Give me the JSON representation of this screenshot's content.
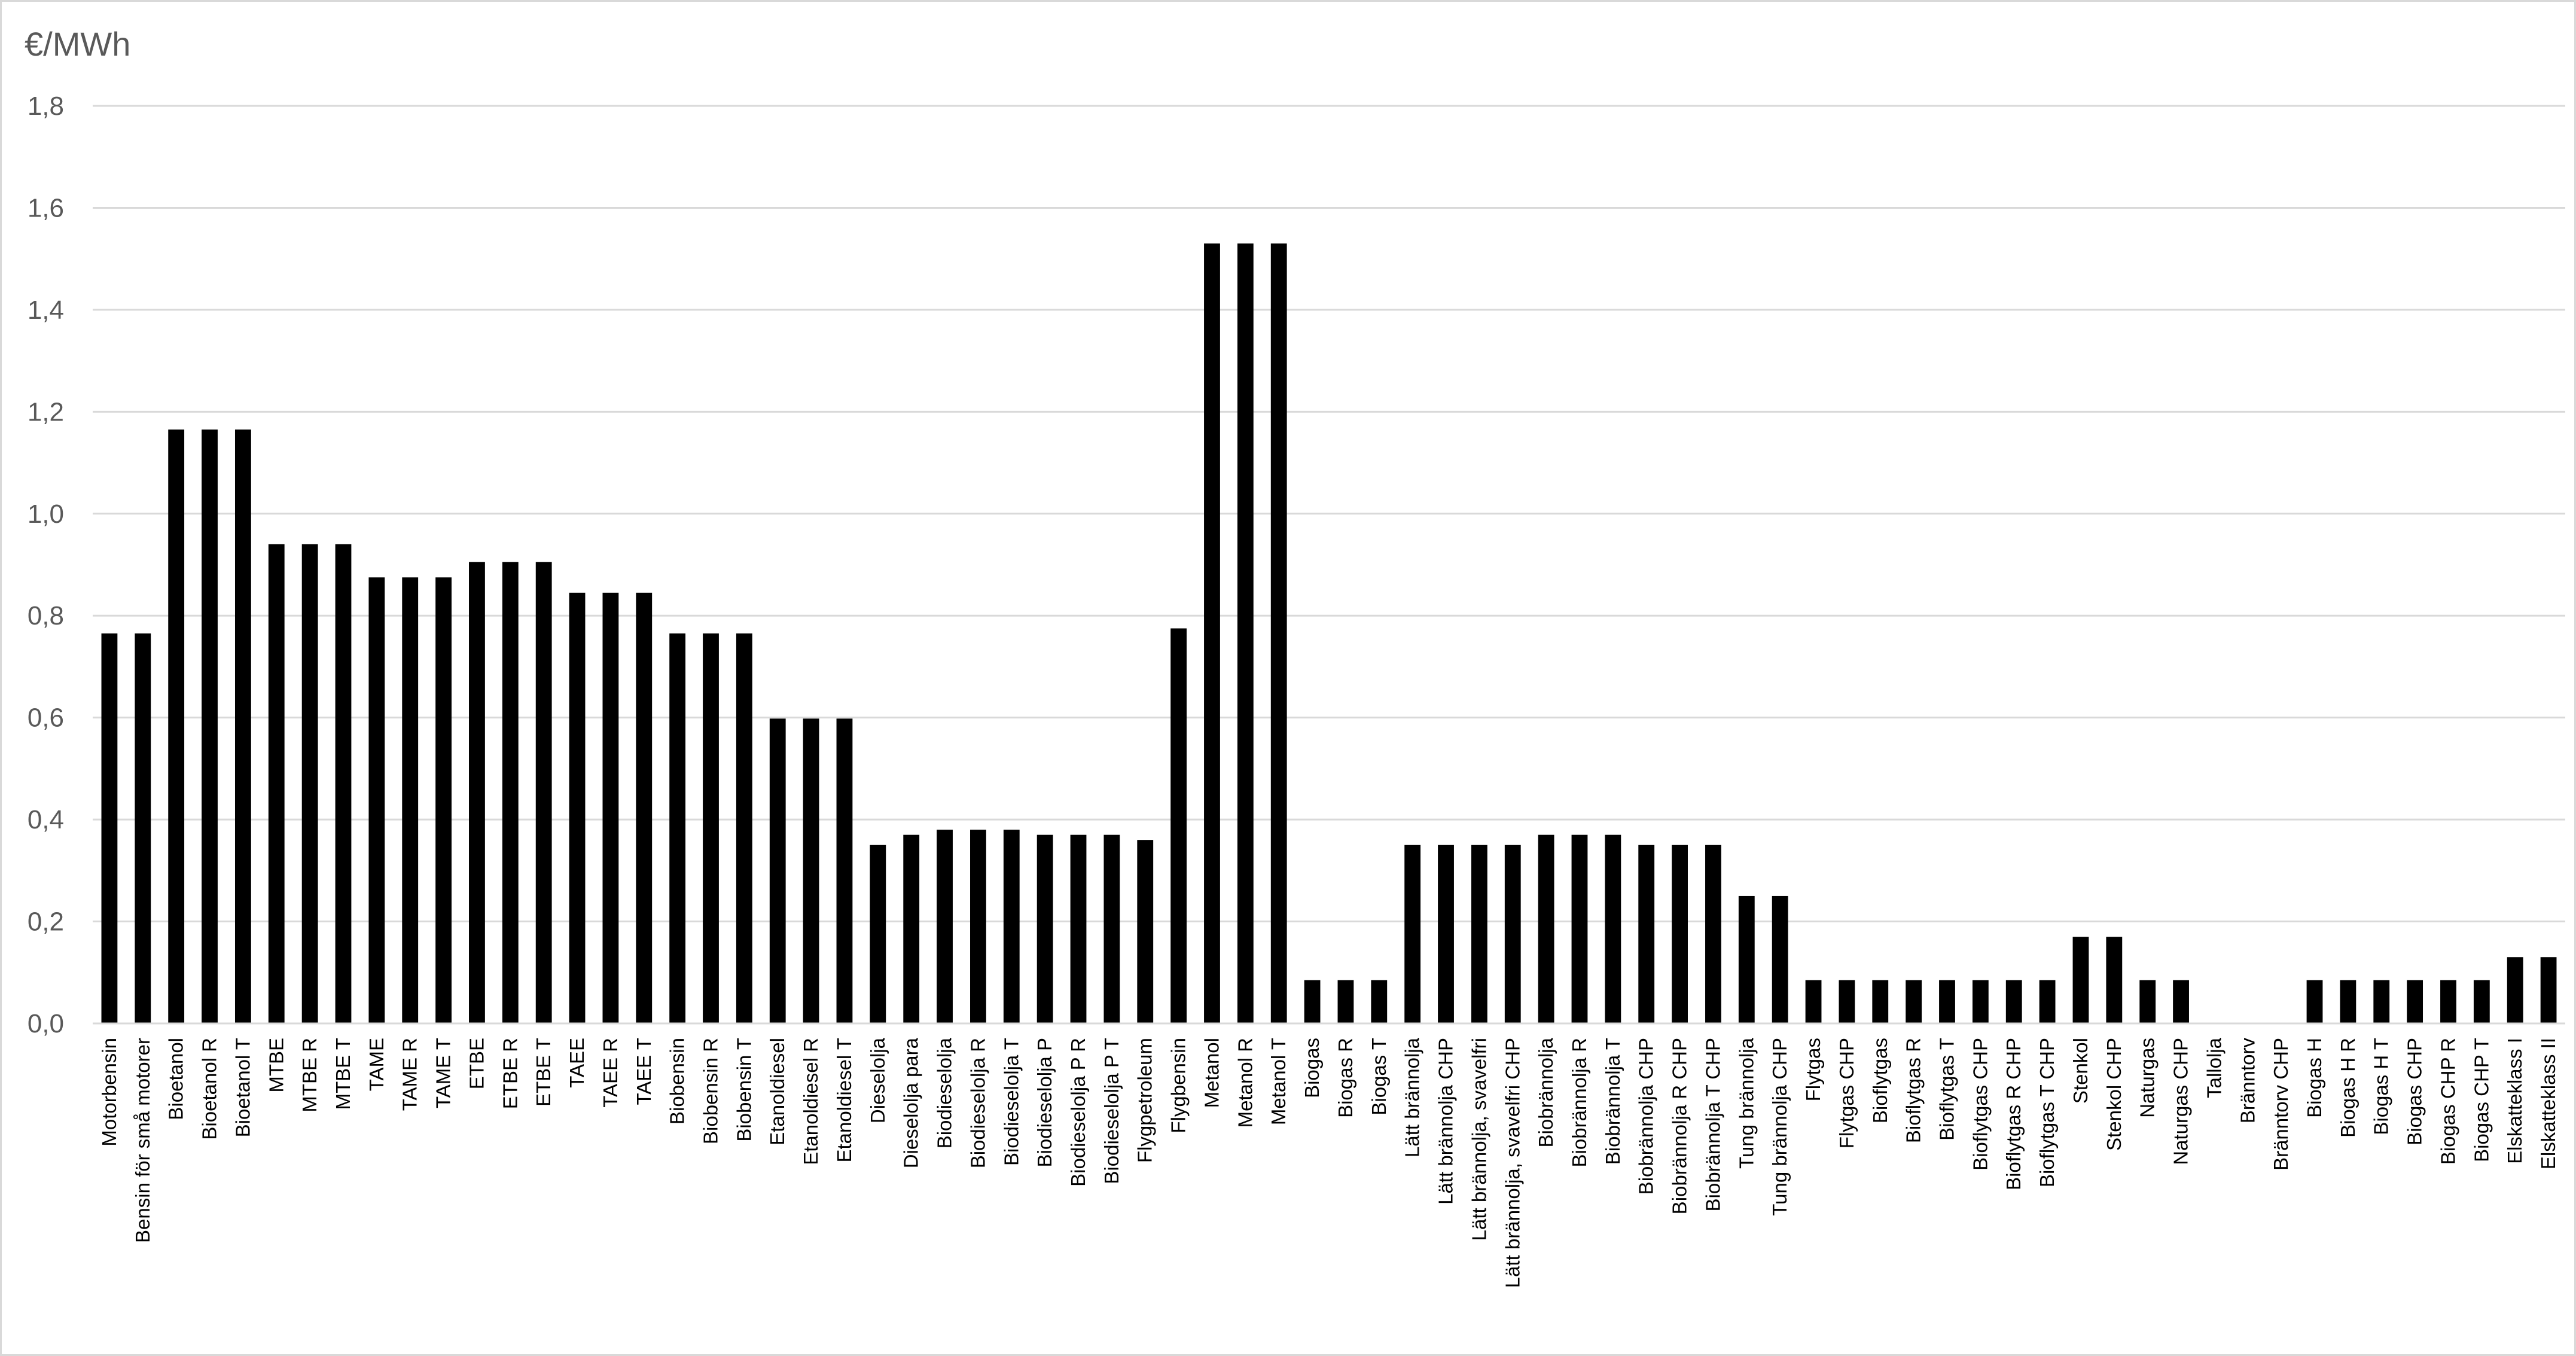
{
  "chart_data": {
    "type": "bar",
    "ylabel": "€/MWh",
    "ylim": [
      0,
      1.8
    ],
    "yticks": [
      "0,0",
      "0,2",
      "0,4",
      "0,6",
      "0,8",
      "1,0",
      "1,2",
      "1,4",
      "1,6",
      "1,8"
    ],
    "grid": true,
    "legend": "none",
    "bar_color": "#000000",
    "categories": [
      "Motorbensin",
      "Bensin för små motorer",
      "Bioetanol",
      "Bioetanol R",
      "Bioetanol T",
      "MTBE",
      "MTBE R",
      "MTBE T",
      "TAME",
      "TAME R",
      "TAME T",
      "ETBE",
      "ETBE R",
      "ETBE T",
      "TAEE",
      "TAEE R",
      "TAEE T",
      "Biobensin",
      "Biobensin R",
      "Biobensin T",
      "Etanoldiesel",
      "Etanoldiesel R",
      "Etanoldiesel T",
      "Dieselolja",
      "Dieselolja para",
      "Biodieselolja",
      "Biodieselolja R",
      "Biodieselolja T",
      "Biodieselolja P",
      "Biodieselolja P R",
      "Biodieselolja P T",
      "Flygpetroleum",
      "Flygbensin",
      "Metanol",
      "Metanol R",
      "Metanol T",
      "Biogas",
      "Biogas R",
      "Biogas T",
      "Lätt brännolja",
      "Lätt brännolja CHP",
      "Lätt brännolja, svavelfri",
      "Lätt brännolja, svavelfri CHP",
      "Biobrännolja",
      "Biobrännolja R",
      "Biobrännolja T",
      "Biobrännolja CHP",
      "Biobrännolja R CHP",
      "Biobrännolja T CHP",
      "Tung brännolja",
      "Tung brännolja CHP",
      "Flytgas",
      "Flytgas CHP",
      "Bioflytgas",
      "Bioflytgas R",
      "Bioflytgas T",
      "Bioflytgas CHP",
      "Bioflytgas R CHP",
      "Bioflytgas T CHP",
      "Stenkol",
      "Stenkol CHP",
      "Naturgas",
      "Naturgas CHP",
      "Tallolja",
      "Bränntorv",
      "Bränntorv CHP",
      "Biogas H",
      "Biogas H R",
      "Biogas H T",
      "Biogas CHP",
      "Biogas CHP R",
      "Biogas CHP T",
      "Elskatteklass I",
      "Elskatteklass II"
    ],
    "values": [
      0.765,
      0.765,
      1.165,
      1.165,
      1.165,
      0.94,
      0.94,
      0.94,
      0.875,
      0.875,
      0.875,
      0.905,
      0.905,
      0.905,
      0.845,
      0.845,
      0.845,
      0.765,
      0.765,
      0.765,
      0.598,
      0.598,
      0.598,
      0.35,
      0.37,
      0.38,
      0.38,
      0.38,
      0.37,
      0.37,
      0.37,
      0.36,
      0.775,
      1.53,
      1.53,
      1.53,
      0.085,
      0.085,
      0.085,
      0.35,
      0.35,
      0.35,
      0.35,
      0.37,
      0.37,
      0.37,
      0.35,
      0.35,
      0.35,
      0.25,
      0.25,
      0.085,
      0.085,
      0.085,
      0.085,
      0.085,
      0.085,
      0.085,
      0.085,
      0.17,
      0.17,
      0.085,
      0.085,
      0,
      0,
      0,
      0.085,
      0.085,
      0.085,
      0.085,
      0.085,
      0.085,
      0.13,
      0.13
    ]
  }
}
